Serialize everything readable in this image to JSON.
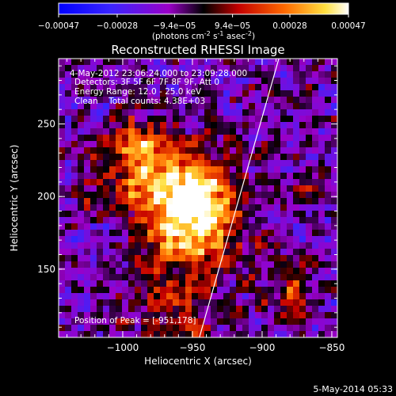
{
  "chart_data": {
    "type": "heatmap",
    "title": "Reconstructed RHESSI Image",
    "xlabel": "Heliocentric X (arcsec)",
    "ylabel": "Heliocentric Y (arcsec)",
    "xlim": [
      -1046,
      -846
    ],
    "ylim": [
      103,
      295
    ],
    "x_ticks": [
      -1000,
      -950,
      -900,
      -850
    ],
    "x_tick_labels": [
      "-1000",
      "-950",
      "-900",
      "-850"
    ],
    "y_ticks": [
      150,
      200,
      250
    ],
    "y_tick_labels": [
      "150",
      "200",
      "250"
    ],
    "colorbar": {
      "range": [
        -0.00047,
        0.00047
      ],
      "ticks": [
        -0.00047,
        -0.00028,
        -9.4e-05,
        9.4e-05,
        0.00028,
        0.00047
      ],
      "tick_labels": [
        "-0.00047",
        "-0.00028",
        "-9.4e-05",
        "9.4e-05",
        "0.00028",
        "0.00047"
      ],
      "unit_prefix": "(photons cm",
      "unit_exp1": "-2",
      "unit_mid": " s",
      "unit_exp2": "-1",
      "unit_mid2": " asec",
      "unit_exp3": "-2",
      "unit_suffix": ")"
    },
    "annotations": [
      "4-May-2012 23:06:24.000 to 23:09:28.000",
      "Detectors: 3F 5F 6F 7F 8F 9F, Att 0",
      "Energy Range: 12.0 - 25.0 keV",
      "Clean    Total counts: 4.38E+03"
    ],
    "peak_label": "Position of Peak = [-951,178]",
    "peak": [
      -951,
      178
    ],
    "limb_line": {
      "x": [
        -945,
        -888
      ],
      "y": [
        103,
        295
      ]
    },
    "colors": {
      "background": "#000000",
      "limb": "#ffffff"
    }
  },
  "timestamp": "5-May-2014 05:33"
}
